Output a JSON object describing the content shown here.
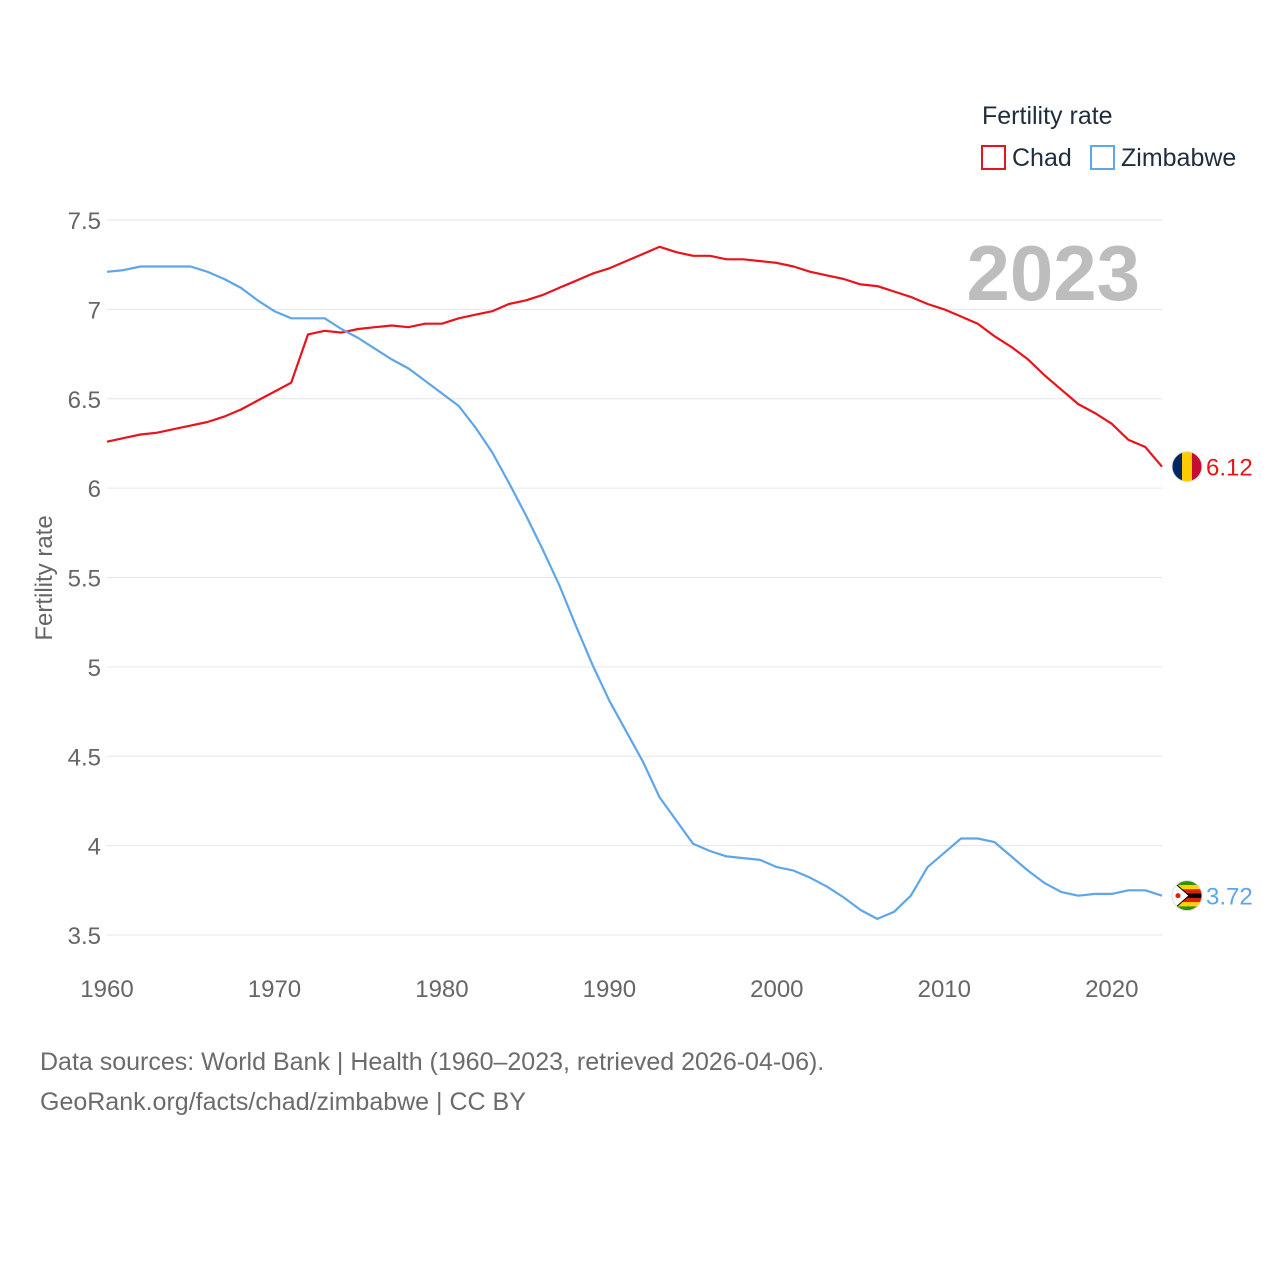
{
  "chart_data": {
    "type": "line",
    "ylabel": "Fertility rate",
    "xlabel": "",
    "legend_title": "Fertility rate",
    "legend_position": "top-right",
    "year_label": "2023",
    "xlim": [
      1960,
      2023
    ],
    "ylim": [
      3.5,
      7.5
    ],
    "x_ticks": [
      1960,
      1970,
      1980,
      1990,
      2000,
      2010,
      2020
    ],
    "y_ticks": [
      "3.5",
      "4",
      "4.5",
      "5",
      "5.5",
      "6",
      "6.5",
      "7",
      "7.5"
    ],
    "grid": true,
    "x": [
      1960,
      1961,
      1962,
      1963,
      1964,
      1965,
      1966,
      1967,
      1968,
      1969,
      1970,
      1971,
      1972,
      1973,
      1974,
      1975,
      1976,
      1977,
      1978,
      1979,
      1980,
      1981,
      1982,
      1983,
      1984,
      1985,
      1986,
      1987,
      1988,
      1989,
      1990,
      1991,
      1992,
      1993,
      1994,
      1995,
      1996,
      1997,
      1998,
      1999,
      2000,
      2001,
      2002,
      2003,
      2004,
      2005,
      2006,
      2007,
      2008,
      2009,
      2010,
      2011,
      2012,
      2013,
      2014,
      2015,
      2016,
      2017,
      2018,
      2019,
      2020,
      2021,
      2022,
      2023
    ],
    "series": [
      {
        "name": "Chad",
        "color": "#e8141b",
        "end_label": "6.12",
        "values": [
          6.26,
          6.28,
          6.3,
          6.31,
          6.33,
          6.35,
          6.37,
          6.4,
          6.44,
          6.49,
          6.54,
          6.59,
          6.86,
          6.88,
          6.87,
          6.89,
          6.9,
          6.91,
          6.9,
          6.92,
          6.92,
          6.95,
          6.97,
          6.99,
          7.03,
          7.05,
          7.08,
          7.12,
          7.16,
          7.2,
          7.23,
          7.27,
          7.31,
          7.35,
          7.32,
          7.3,
          7.3,
          7.28,
          7.28,
          7.27,
          7.26,
          7.24,
          7.21,
          7.19,
          7.17,
          7.14,
          7.13,
          7.1,
          7.07,
          7.03,
          7.0,
          6.96,
          6.92,
          6.85,
          6.79,
          6.72,
          6.63,
          6.55,
          6.47,
          6.42,
          6.36,
          6.27,
          6.23,
          6.12
        ]
      },
      {
        "name": "Zimbabwe",
        "color": "#5ea6e8",
        "end_label": "3.72",
        "values": [
          7.21,
          7.22,
          7.24,
          7.24,
          7.24,
          7.24,
          7.21,
          7.17,
          7.12,
          7.05,
          6.99,
          6.95,
          6.95,
          6.95,
          6.89,
          6.84,
          6.78,
          6.72,
          6.67,
          6.6,
          6.53,
          6.46,
          6.34,
          6.2,
          6.03,
          5.85,
          5.66,
          5.46,
          5.23,
          5.01,
          4.81,
          4.64,
          4.47,
          4.27,
          4.14,
          4.01,
          3.97,
          3.94,
          3.93,
          3.92,
          3.88,
          3.86,
          3.82,
          3.77,
          3.71,
          3.64,
          3.59,
          3.63,
          3.72,
          3.88,
          3.96,
          4.04,
          4.04,
          4.02,
          3.94,
          3.86,
          3.79,
          3.74,
          3.72,
          3.73,
          3.73,
          3.75,
          3.75,
          3.72
        ]
      }
    ]
  },
  "footer": {
    "line1": "Data sources: World Bank | Health (1960–2023, retrieved 2026-04-06).",
    "line2": "GeoRank.org/facts/chad/zimbabwe | CC BY"
  }
}
